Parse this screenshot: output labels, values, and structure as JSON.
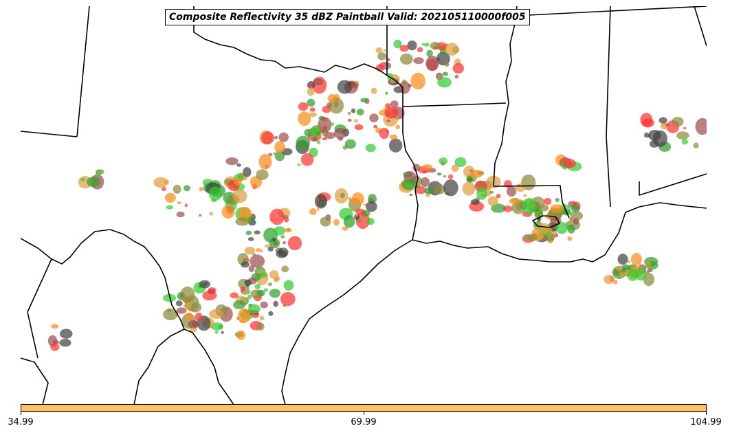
{
  "title": "Composite Reflectivity 35 dBZ Paintball Valid: 202105110000f005",
  "colorbar": {
    "color": "#ffc060",
    "ticks": [
      "34.99",
      "69.99",
      "104.99"
    ]
  },
  "member_colors": [
    "#ff3333",
    "#ff8c1a",
    "#33cc33",
    "#a05050",
    "#8c8c3c",
    "#444444",
    "#e0a040",
    "#30a030"
  ],
  "colors": {
    "boundary": "#000000",
    "background": "#ffffff"
  }
}
